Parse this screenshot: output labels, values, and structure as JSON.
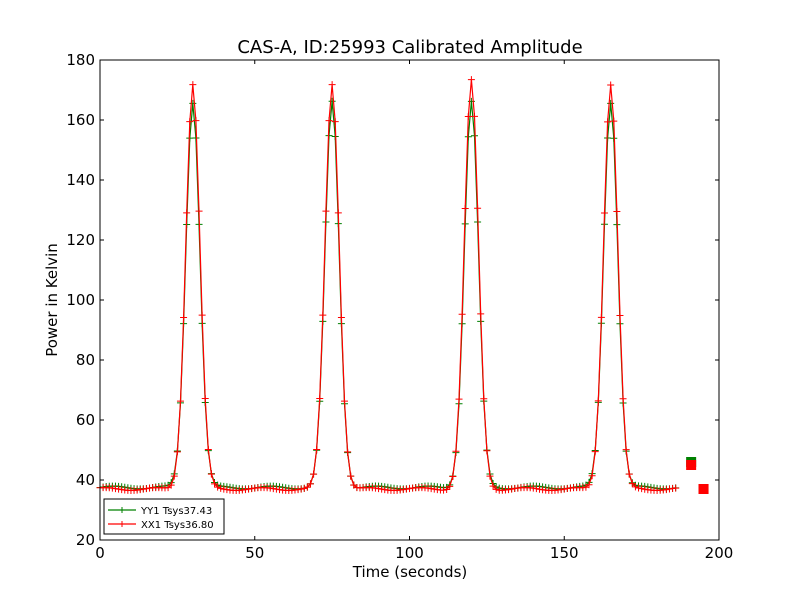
{
  "chart_data": {
    "type": "line",
    "title": "CAS-A, ID:25993 Calibrated Amplitude",
    "xlabel": "Time (seconds)",
    "ylabel": "Power in Kelvin",
    "xlim": [
      0,
      200
    ],
    "ylim": [
      20,
      180
    ],
    "xticks": [
      0,
      50,
      100,
      150,
      200
    ],
    "yticks": [
      20,
      40,
      60,
      80,
      100,
      120,
      140,
      160,
      180
    ],
    "grid": false,
    "legend_location": "lower-left",
    "sample_interval_seconds": 1,
    "peaks": [
      {
        "center_seconds": 30,
        "peak_yy1": 166,
        "peak_xx1": 172
      },
      {
        "center_seconds": 75,
        "peak_yy1": 166,
        "peak_xx1": 172
      },
      {
        "center_seconds": 120,
        "peak_yy1": 166,
        "peak_xx1": 173
      },
      {
        "center_seconds": 165,
        "peak_yy1": 166,
        "peak_xx1": 172
      }
    ],
    "series": [
      {
        "name": "YY1 Tsys37.43",
        "color": "#008000",
        "marker": "plus",
        "baseline": 37.5
      },
      {
        "name": "XX1 Tsys36.80",
        "color": "#ff0000",
        "marker": "plus",
        "baseline": 37.0
      }
    ],
    "tail": {
      "x": [
        191,
        195
      ],
      "yy1": [
        46,
        37
      ],
      "xx1": [
        45,
        37
      ],
      "marker": "square"
    }
  }
}
